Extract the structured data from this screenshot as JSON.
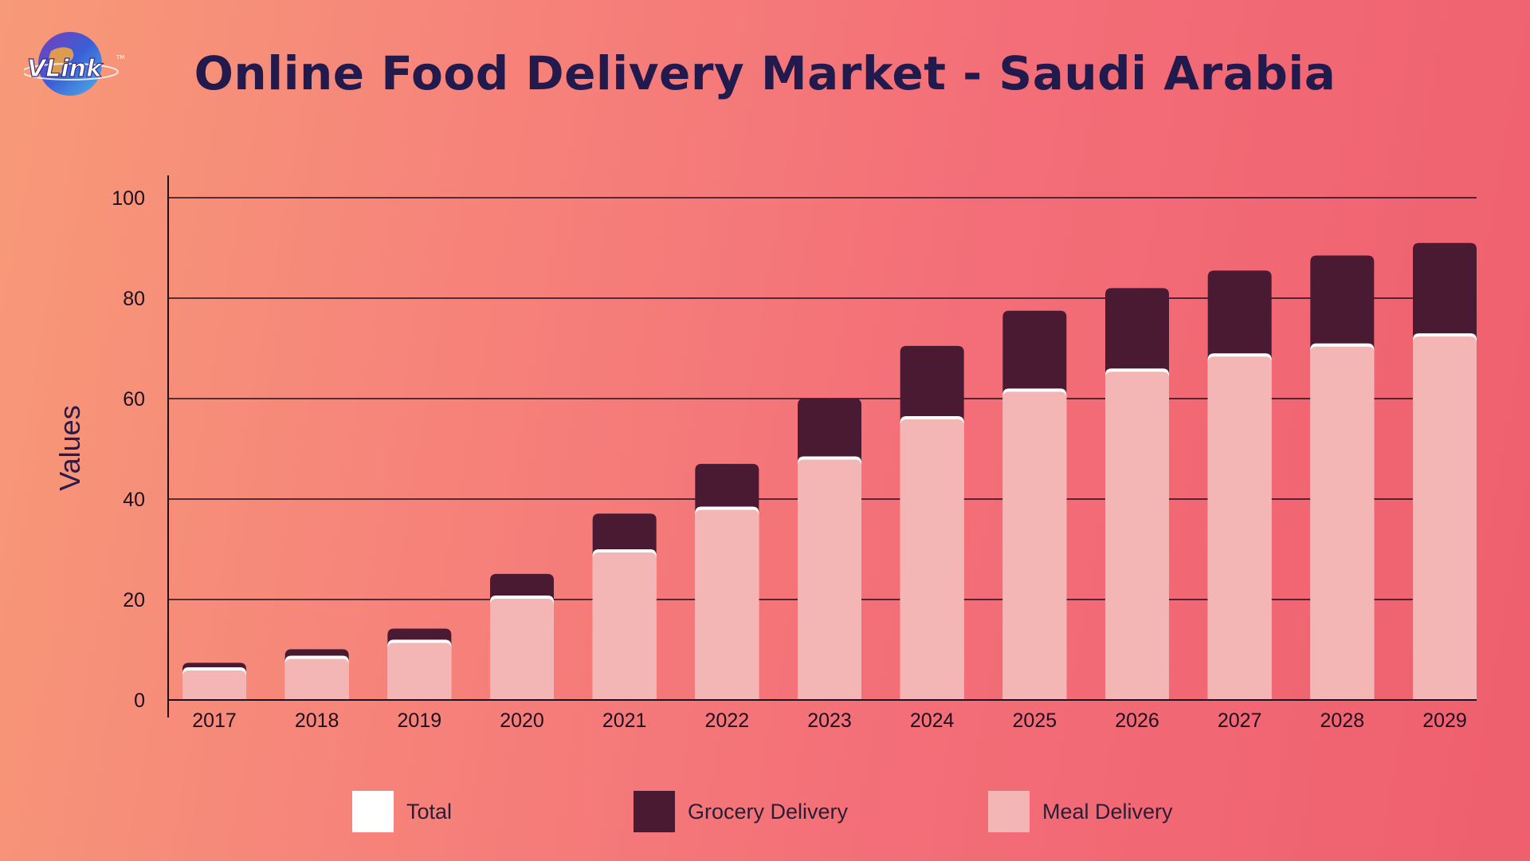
{
  "title": "Online Food Delivery Market - Saudi Arabia",
  "logo": {
    "text": "VLink",
    "mark": "TM"
  },
  "colors": {
    "total": "#ffffff",
    "grocery": "#4a1a32",
    "meal": "#f4b6b4",
    "axis": "#1e0f1e",
    "title": "#221a4d"
  },
  "legend": {
    "total": "Total",
    "grocery": "Grocery Delivery",
    "meal": "Meal Delivery"
  },
  "chart_data": {
    "type": "bar",
    "stacked": true,
    "title": "Online Food Delivery Market - Saudi Arabia",
    "xlabel": "",
    "ylabel": "Values",
    "ylim": [
      0,
      100
    ],
    "yticks": [
      0,
      20,
      40,
      60,
      80,
      100
    ],
    "grid": true,
    "legend_position": "bottom",
    "categories": [
      "2017",
      "2018",
      "2019",
      "2020",
      "2021",
      "2022",
      "2023",
      "2024",
      "2025",
      "2026",
      "2027",
      "2028",
      "2029"
    ],
    "series": [
      {
        "name": "Meal Delivery",
        "values": [
          6.5,
          8.8,
          12,
          20.8,
          30,
          38.5,
          48.5,
          56.5,
          62,
          66,
          69,
          71,
          73
        ]
      },
      {
        "name": "Grocery Delivery",
        "values": [
          0.9,
          1.3,
          2.2,
          4.3,
          7.1,
          8.5,
          11.5,
          14,
          15.5,
          16,
          16.5,
          17.5,
          18
        ]
      },
      {
        "name": "Total",
        "values": [
          7.4,
          10.1,
          14.2,
          25.1,
          37.1,
          47,
          60,
          70.5,
          77.5,
          82,
          85.5,
          88.5,
          91
        ]
      }
    ]
  }
}
